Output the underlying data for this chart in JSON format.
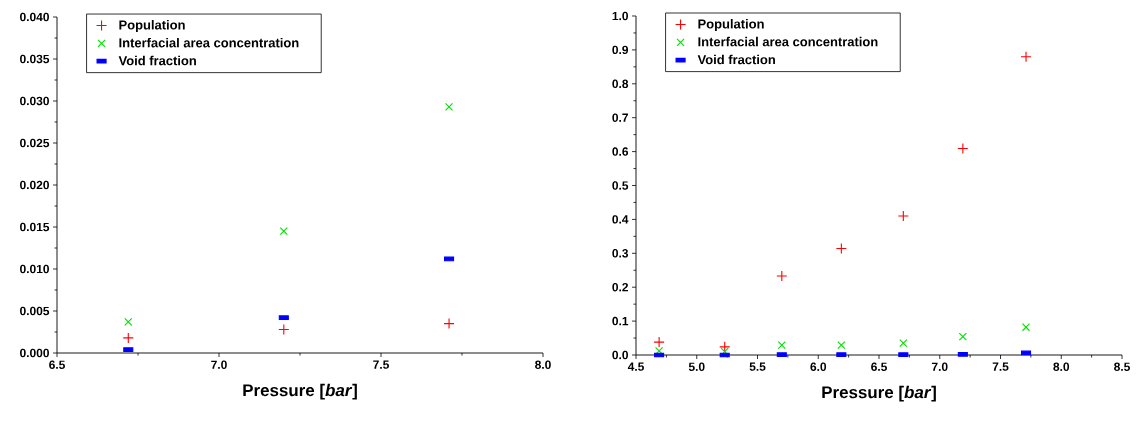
{
  "chart_data": [
    {
      "type": "scatter",
      "xlabel": "Pressure [*bar*]",
      "xlim": [
        6.5,
        8.0
      ],
      "xticks": [
        6.5,
        {
          "value": 7.0,
          "label": "7.0"
        },
        7.5,
        {
          "value": 8.0,
          "label": "8.0"
        }
      ],
      "ylim": [
        0,
        0.04
      ],
      "yticks": [
        {
          "value": 0,
          "label": "0.000"
        },
        {
          "value": 0.005,
          "label": "0.005"
        },
        {
          "value": 0.01,
          "label": "0.010"
        },
        {
          "value": 0.015,
          "label": "0.015"
        },
        {
          "value": 0.02,
          "label": "0.020"
        },
        {
          "value": 0.025,
          "label": "0.025"
        },
        {
          "value": 0.03,
          "label": "0.030"
        },
        {
          "value": 0.035,
          "label": "0.035"
        },
        {
          "value": 0.04,
          "label": "0.040"
        }
      ],
      "legend": "top left",
      "grid": false,
      "series": [
        {
          "name": "Population",
          "color": "#ff0000",
          "marker": "plus",
          "x": [
            6.72,
            7.2,
            7.71
          ],
          "values": [
            0.0018,
            0.0028,
            0.0035
          ]
        },
        {
          "name": "Interfacial area concentration",
          "color": "#00e000",
          "marker": "cross",
          "x": [
            6.72,
            7.2,
            7.71
          ],
          "values": [
            0.0037,
            0.0145,
            0.0293
          ]
        },
        {
          "name": "Void fraction",
          "color": "#0000ff",
          "marker": "square",
          "x": [
            6.72,
            7.2,
            7.71
          ],
          "values": [
            0.0004,
            0.0042,
            0.0112
          ]
        }
      ]
    },
    {
      "type": "scatter",
      "xlabel": "Pressure [*bar*]",
      "xlim": [
        4.5,
        8.5
      ],
      "xticks": [
        4.5,
        {
          "value": 5.0,
          "label": "5.0"
        },
        5.5,
        {
          "value": 6.0,
          "label": "6.0"
        },
        6.5,
        {
          "value": 7.0,
          "label": "7.0"
        },
        7.5,
        {
          "value": 8.0,
          "label": "8.0"
        },
        8.5
      ],
      "ylim": [
        0,
        1.0
      ],
      "yticks": [
        {
          "value": 0,
          "label": "0.0"
        },
        0.1,
        0.2,
        0.3,
        0.4,
        0.5,
        0.6,
        0.7,
        0.8,
        0.9,
        {
          "value": 1.0,
          "label": "1.0"
        }
      ],
      "legend": "top left",
      "grid": false,
      "series": [
        {
          "name": "Population",
          "color": "#ff0000",
          "marker": "plus",
          "x": [
            4.69,
            5.23,
            5.7,
            6.19,
            6.7,
            7.19,
            7.71
          ],
          "values": [
            0.038,
            0.024,
            0.233,
            0.314,
            0.41,
            0.609,
            0.88
          ]
        },
        {
          "name": "Interfacial area concentration",
          "color": "#00e000",
          "marker": "cross",
          "x": [
            4.69,
            5.23,
            5.7,
            6.19,
            6.7,
            7.19,
            7.71
          ],
          "values": [
            0.012,
            0.01,
            0.029,
            0.029,
            0.035,
            0.054,
            0.082
          ]
        },
        {
          "name": "Void fraction",
          "color": "#0000ff",
          "marker": "square",
          "x": [
            4.69,
            5.23,
            5.7,
            6.19,
            6.7,
            7.19,
            7.71
          ],
          "values": [
            0,
            0,
            0.001,
            0.001,
            0.001,
            0.002,
            0.006
          ]
        }
      ]
    }
  ]
}
